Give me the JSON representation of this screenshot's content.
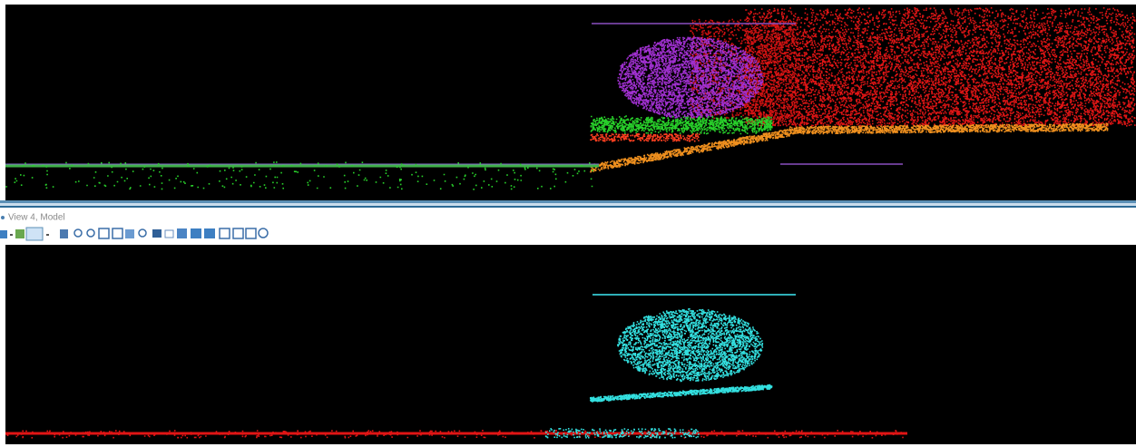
{
  "view": {
    "title": "View 4, Model"
  }
}
